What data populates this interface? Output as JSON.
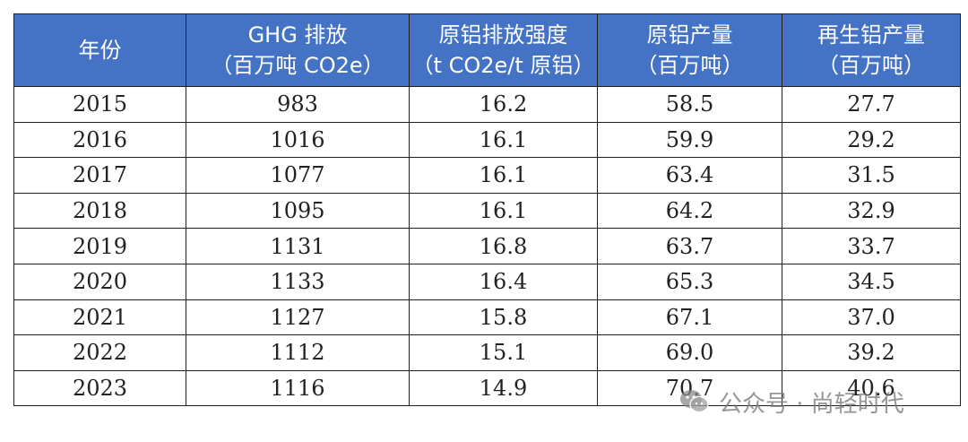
{
  "table": {
    "headers": [
      [
        "年份",
        ""
      ],
      [
        "GHG 排放",
        "（百万吨 CO2e）"
      ],
      [
        "原铝排放强度",
        "（t CO2e/t 原铝）"
      ],
      [
        "原铝产量",
        "（百万吨）"
      ],
      [
        "再生铝产量",
        "（百万吨）"
      ]
    ],
    "rows": [
      [
        "2015",
        "983",
        "16.2",
        "58.5",
        "27.7"
      ],
      [
        "2016",
        "1016",
        "16.1",
        "59.9",
        "29.2"
      ],
      [
        "2017",
        "1077",
        "16.1",
        "63.4",
        "31.5"
      ],
      [
        "2018",
        "1095",
        "16.1",
        "64.2",
        "32.9"
      ],
      [
        "2019",
        "1131",
        "16.8",
        "63.7",
        "33.7"
      ],
      [
        "2020",
        "1133",
        "16.4",
        "65.3",
        "34.5"
      ],
      [
        "2021",
        "1127",
        "15.8",
        "67.1",
        "37.0"
      ],
      [
        "2022",
        "1112",
        "15.1",
        "69.0",
        "39.2"
      ],
      [
        "2023",
        "1116",
        "14.9",
        "70.7",
        "40.6"
      ]
    ]
  },
  "watermark": {
    "text": "公众号 · 尚轻时代",
    "icon": "wechat-icon"
  },
  "colors": {
    "header_bg": "#4472c4",
    "header_text": "#ffffff",
    "border": "#1f1f1f"
  }
}
